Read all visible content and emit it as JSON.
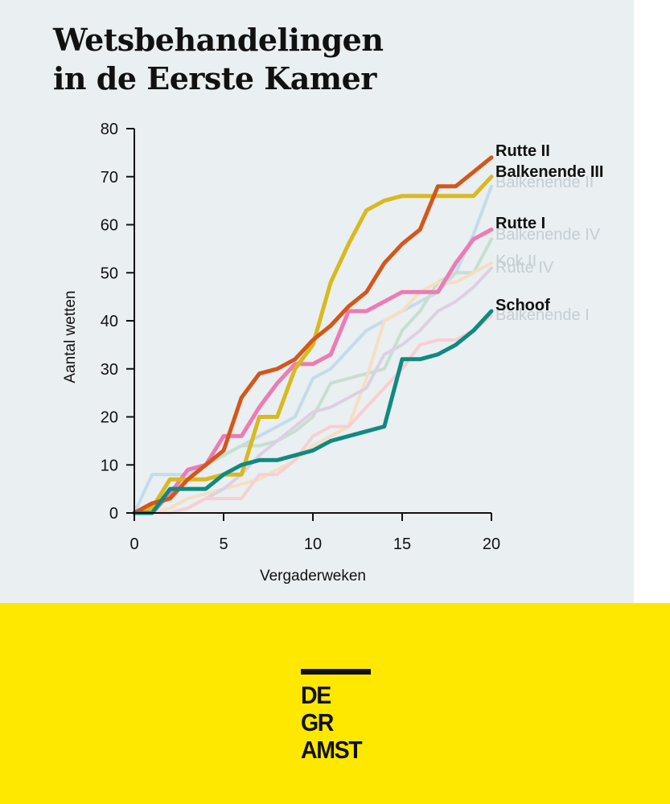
{
  "title": {
    "line1": "Wetsbehandelingen",
    "line2": "in de Eerste Kamer"
  },
  "chart_data": {
    "type": "line",
    "title": "Wetsbehandelingen in de Eerste Kamer",
    "xlabel": "Vergaderweken",
    "ylabel": "Aantal wetten",
    "xlim": [
      0,
      20
    ],
    "ylim": [
      0,
      80
    ],
    "xticks": [
      0,
      5,
      10,
      15,
      20
    ],
    "yticks": [
      0,
      10,
      20,
      30,
      40,
      50,
      60,
      70,
      80
    ],
    "grid": false,
    "legend": "direct labels at line ends",
    "x": [
      0,
      1,
      2,
      3,
      4,
      5,
      6,
      7,
      8,
      9,
      10,
      11,
      12,
      13,
      14,
      15,
      16,
      17,
      18,
      19,
      20
    ],
    "series": [
      {
        "name": "Balkenende II",
        "color": "#c3dcea",
        "emphasis": false,
        "values": [
          0,
          8,
          8,
          8,
          10,
          12,
          14,
          16,
          18,
          20,
          28,
          30,
          34,
          38,
          40,
          42,
          44,
          46,
          50,
          58,
          68
        ]
      },
      {
        "name": "Balkenende IV",
        "color": "#c6dfcf",
        "emphasis": false,
        "values": [
          0,
          0,
          4,
          7,
          10,
          12,
          14,
          14,
          15,
          17,
          20,
          27,
          28,
          29,
          30,
          38,
          42,
          48,
          50,
          50,
          57
        ]
      },
      {
        "name": "Kok II",
        "color": "#f5dfc3",
        "emphasis": false,
        "values": [
          0,
          0,
          1,
          3,
          4,
          5,
          6,
          7,
          9,
          11,
          14,
          16,
          18,
          28,
          40,
          42,
          46,
          48,
          48,
          50,
          52
        ]
      },
      {
        "name": "Rutte IV",
        "color": "#ddd0e3",
        "emphasis": false,
        "values": [
          0,
          0,
          0,
          1,
          3,
          5,
          8,
          12,
          15,
          18,
          21,
          22,
          24,
          26,
          33,
          35,
          38,
          42,
          44,
          47,
          51
        ]
      },
      {
        "name": "Balkenende I",
        "color": "#f7cfd3",
        "emphasis": false,
        "values": [
          0,
          0,
          0,
          1,
          3,
          3,
          3,
          8,
          8,
          11,
          16,
          18,
          18,
          22,
          26,
          30,
          35,
          36,
          36,
          38,
          41
        ]
      },
      {
        "name": "Rutte I",
        "color": "#ee7bb3",
        "emphasis": true,
        "values": [
          0,
          0,
          4,
          9,
          10,
          16,
          16,
          22,
          27,
          31,
          31,
          33,
          42,
          42,
          44,
          46,
          46,
          46,
          52,
          57,
          59
        ]
      },
      {
        "name": "Balkenende III",
        "color": "#d8b91f",
        "emphasis": true,
        "values": [
          0,
          1,
          7,
          7,
          7,
          8,
          8,
          20,
          20,
          30,
          35,
          48,
          56,
          63,
          65,
          66,
          66,
          66,
          66,
          66,
          70
        ]
      },
      {
        "name": "Rutte II",
        "color": "#d5561b",
        "emphasis": true,
        "values": [
          0,
          2,
          3,
          7,
          10,
          13,
          24,
          29,
          30,
          32,
          36,
          39,
          43,
          46,
          52,
          56,
          59,
          68,
          68,
          71,
          74
        ]
      },
      {
        "name": "Schoof",
        "color": "#0f8a80",
        "emphasis": true,
        "values": [
          0,
          0,
          5,
          5,
          5,
          8,
          10,
          11,
          11,
          12,
          13,
          15,
          16,
          17,
          18,
          32,
          32,
          33,
          35,
          38,
          42
        ]
      }
    ]
  },
  "logo": {
    "line1": "DE GR",
    "line2": "AMST"
  },
  "colors": {
    "background": "#eaeff1",
    "footer": "#ffe800",
    "ink": "#111111"
  }
}
